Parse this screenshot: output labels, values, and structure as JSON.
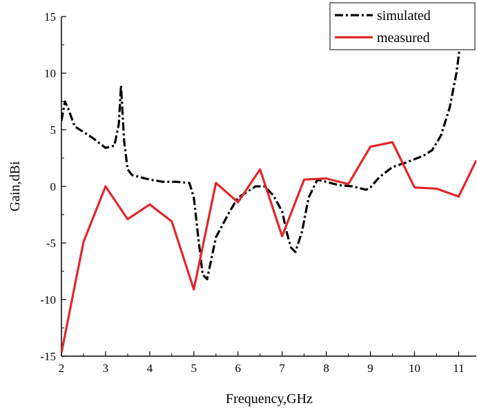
{
  "chart_data": {
    "type": "line",
    "title": "",
    "xlabel": "Frequency,GHz",
    "ylabel": "Gain,dBi",
    "xlim": [
      2,
      11.4
    ],
    "ylim": [
      -15,
      15
    ],
    "x_ticks": [
      2,
      3,
      4,
      5,
      6,
      7,
      8,
      9,
      10,
      11
    ],
    "y_ticks": [
      -15,
      -10,
      -5,
      0,
      5,
      10,
      15
    ],
    "x_tick_labels": [
      "2",
      "3",
      "4",
      "5",
      "6",
      "7",
      "8",
      "9",
      "10",
      "11"
    ],
    "y_tick_labels": [
      "-15",
      "-10",
      "-5",
      "0",
      "5",
      "10",
      "15"
    ],
    "grid": false,
    "legend_position": "top-right",
    "series": [
      {
        "name": "simulated",
        "color": "#000000",
        "style": "dash-dot",
        "x": [
          2.0,
          2.08,
          2.15,
          2.3,
          2.5,
          2.7,
          3.0,
          3.2,
          3.3,
          3.35,
          3.42,
          3.5,
          3.6,
          3.8,
          4.0,
          4.3,
          4.6,
          4.9,
          5.0,
          5.1,
          5.2,
          5.3,
          5.5,
          5.8,
          6.0,
          6.2,
          6.4,
          6.6,
          6.8,
          7.0,
          7.1,
          7.2,
          7.3,
          7.45,
          7.6,
          7.8,
          8.0,
          8.3,
          8.6,
          8.9,
          9.0,
          9.2,
          9.5,
          9.8,
          10.0,
          10.2,
          10.4,
          10.6,
          10.8,
          10.95,
          11.05,
          11.1
        ],
        "y": [
          5.8,
          7.5,
          6.9,
          5.3,
          4.8,
          4.3,
          3.4,
          3.6,
          5.5,
          8.9,
          4.0,
          1.5,
          1.0,
          0.8,
          0.6,
          0.4,
          0.4,
          0.3,
          -1.0,
          -4.5,
          -7.8,
          -8.2,
          -4.5,
          -2.3,
          -1.0,
          -0.5,
          0.0,
          0.0,
          -0.8,
          -2.2,
          -4.0,
          -5.4,
          -5.8,
          -4.0,
          -1.0,
          0.6,
          0.4,
          0.1,
          0.0,
          -0.3,
          -0.1,
          0.8,
          1.7,
          2.1,
          2.4,
          2.7,
          3.2,
          4.5,
          7.0,
          10.0,
          13.0,
          15.0
        ]
      },
      {
        "name": "measured",
        "color": "#e0282a",
        "style": "solid",
        "x": [
          2.0,
          2.5,
          3.0,
          3.5,
          4.0,
          4.5,
          5.0,
          5.5,
          6.0,
          6.5,
          7.0,
          7.5,
          8.0,
          8.5,
          9.0,
          9.5,
          10.0,
          10.5,
          11.0,
          11.4
        ],
        "y": [
          -14.7,
          -4.9,
          0.0,
          -2.9,
          -1.6,
          -3.1,
          -9.1,
          0.3,
          -1.4,
          1.5,
          -4.4,
          0.6,
          0.7,
          0.2,
          3.5,
          3.9,
          -0.1,
          -0.2,
          -0.9,
          2.3
        ]
      }
    ]
  }
}
